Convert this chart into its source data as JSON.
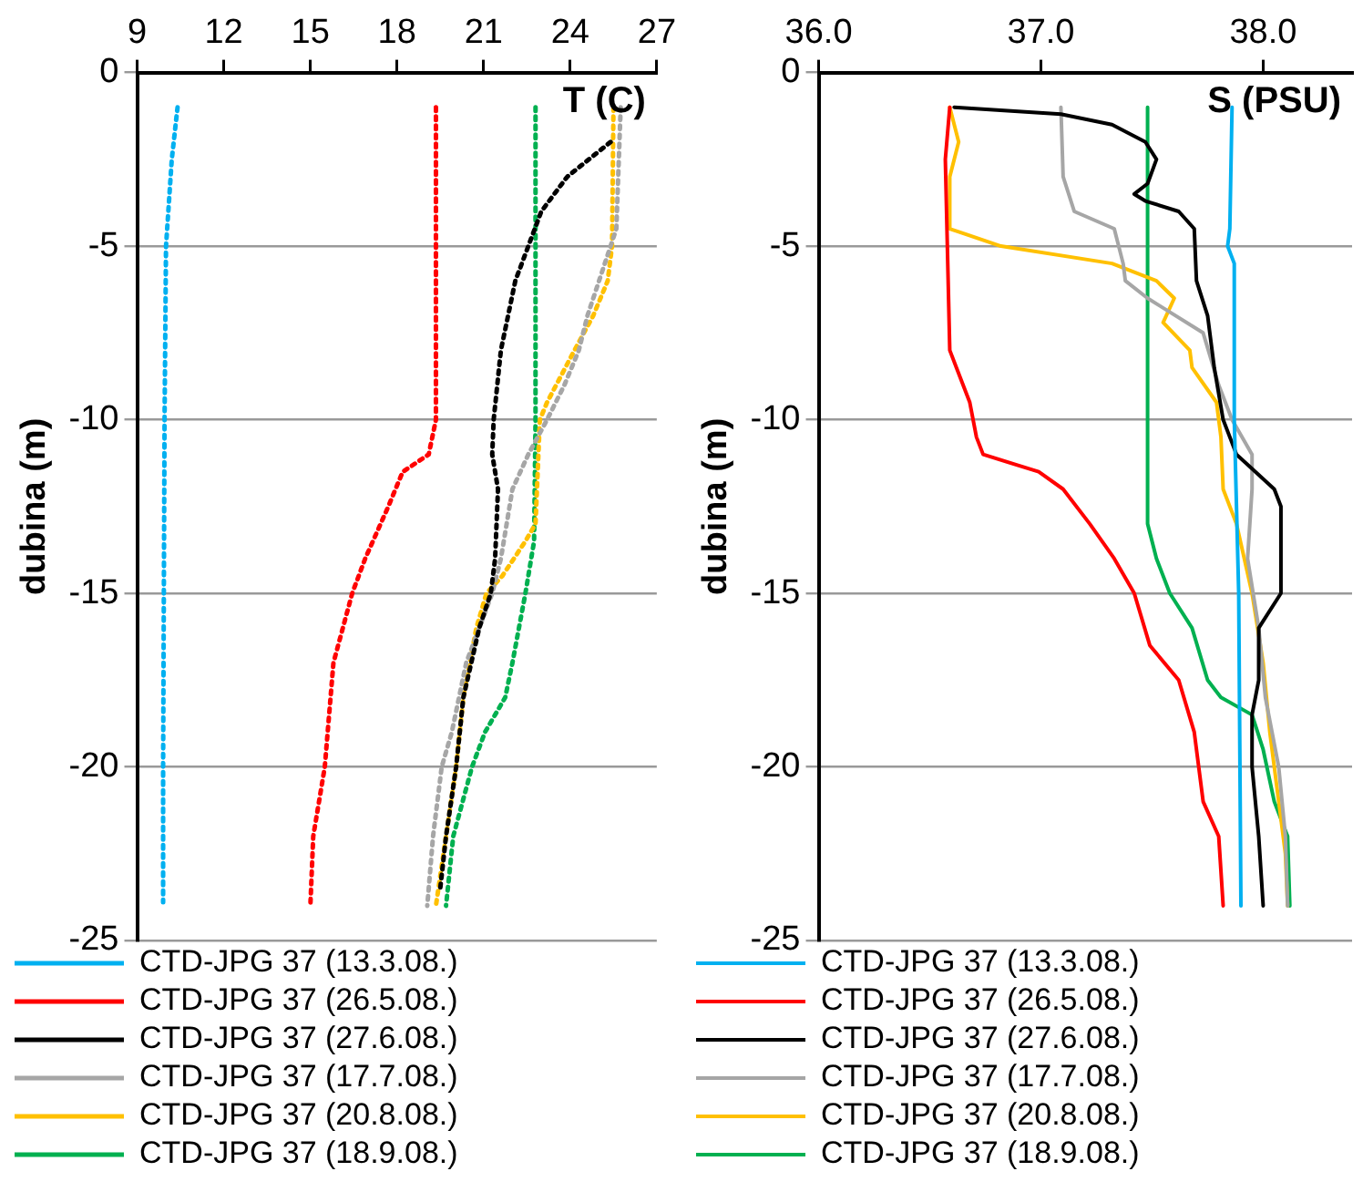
{
  "chart_data": [
    {
      "type": "line",
      "ylabel": "dubina (m)",
      "annotations": [
        "T (C)"
      ],
      "xlim": [
        9,
        27
      ],
      "xticks": [
        9,
        12,
        15,
        18,
        21,
        24,
        27
      ],
      "ylim": [
        -25,
        0
      ],
      "yticks": [
        -25,
        -20,
        -15,
        -10,
        -5,
        0
      ],
      "grid": "y",
      "legend": "bottom",
      "marker": "none",
      "line_style": "dotted",
      "series": [
        {
          "name": "CTD-JPG 37 (13.3.08.)",
          "color": "#00b0f0",
          "x": [
            10.4,
            10.2,
            10.0,
            9.95,
            9.9,
            9.9
          ],
          "values": [
            -1,
            -2.5,
            -5,
            -10,
            -20,
            -23.9
          ]
        },
        {
          "name": "CTD-JPG 37 (26.5.08.)",
          "color": "#ff0000",
          "x": [
            19.35,
            19.35,
            19.35,
            19.1,
            18.2,
            17.7,
            16.9,
            16.45,
            15.8,
            15.5,
            15.1,
            15.0
          ],
          "values": [
            -1,
            -5,
            -10,
            -11,
            -11.5,
            -12.5,
            -14,
            -15,
            -17,
            -20,
            -22,
            -24
          ]
        },
        {
          "name": "CTD-JPG 37 (27.6.08.)",
          "color": "#000000",
          "x": [
            25.4,
            23.9,
            23.0,
            22.55,
            22.1,
            21.6,
            21.35,
            21.3,
            21.5,
            21.4,
            21.25,
            20.85,
            20.3,
            20.05,
            19.7,
            19.5
          ],
          "values": [
            -2,
            -3,
            -4,
            -5,
            -6,
            -8,
            -10,
            -11,
            -12,
            -14,
            -15,
            -16,
            -18,
            -20,
            -22,
            -23.5
          ]
        },
        {
          "name": "CTD-JPG 37 (17.7.08.)",
          "color": "#a6a6a6",
          "x": [
            25.75,
            25.6,
            25.2,
            24.6,
            24.3,
            23.8,
            23.2,
            22.55,
            22.0,
            21.6,
            21.3,
            20.4,
            19.9,
            19.55,
            19.25,
            19.05
          ],
          "values": [
            -1,
            -4.5,
            -5.5,
            -7,
            -8,
            -9,
            -10,
            -11,
            -12,
            -14,
            -15,
            -17,
            -19,
            -20,
            -22,
            -24
          ]
        },
        {
          "name": "CTD-JPG 37 (20.8.08.)",
          "color": "#ffc000",
          "x": [
            25.5,
            25.45,
            25.3,
            24.8,
            24.15,
            23.2,
            22.95,
            22.9,
            22.8,
            22.45,
            21.65,
            21.1,
            20.75,
            20.3,
            20.05,
            19.7,
            19.35
          ],
          "values": [
            -1,
            -5,
            -6,
            -7,
            -8,
            -9.5,
            -10,
            -11,
            -13,
            -13.5,
            -14.5,
            -15,
            -16,
            -18,
            -20,
            -22,
            -24
          ]
        },
        {
          "name": "CTD-JPG 37 (18.9.08.)",
          "color": "#00b050",
          "x": [
            22.8,
            22.8,
            22.75,
            22.45,
            22.0,
            21.75,
            21.05,
            20.6,
            19.95,
            19.7
          ],
          "values": [
            -1,
            -10,
            -13.5,
            -15,
            -17,
            -18,
            -19,
            -20,
            -22,
            -24
          ]
        }
      ]
    },
    {
      "type": "line",
      "ylabel": "dubina (m)",
      "annotations": [
        "S (PSU)"
      ],
      "xlim": [
        36,
        38.4
      ],
      "xticks": [
        {
          "value": 36,
          "label": "36.0"
        },
        {
          "value": 37,
          "label": "37.0"
        },
        {
          "value": 38,
          "label": "38.0"
        }
      ],
      "ylim": [
        -25,
        0
      ],
      "yticks": [
        -25,
        -20,
        -15,
        -10,
        -5,
        0
      ],
      "grid": "y",
      "legend": "bottom",
      "marker": "none",
      "line_style": "solid",
      "series": [
        {
          "name": "CTD-JPG 37 (13.3.08.)",
          "color": "#00b0f0",
          "x": [
            37.86,
            37.85,
            37.84,
            37.87,
            37.87,
            37.89,
            37.9
          ],
          "values": [
            -1,
            -4.5,
            -5,
            -5.5,
            -10,
            -15,
            -24
          ]
        },
        {
          "name": "CTD-JPG 37 (26.5.08.)",
          "color": "#ff0000",
          "x": [
            36.59,
            36.57,
            36.59,
            36.62,
            36.68,
            36.71,
            36.74,
            36.99,
            37.1,
            37.22,
            37.33,
            37.42,
            37.49,
            37.62,
            37.69,
            37.73,
            37.8,
            37.82
          ],
          "values": [
            -1,
            -2.5,
            -8,
            -8.5,
            -9.5,
            -10.5,
            -11,
            -11.5,
            -12,
            -13,
            -14,
            -15,
            -16.5,
            -17.5,
            -19,
            -21,
            -22,
            -24
          ]
        },
        {
          "name": "CTD-JPG 37 (27.6.08.)",
          "color": "#000000",
          "x": [
            36.61,
            37.09,
            37.32,
            37.47,
            37.52,
            37.48,
            37.42,
            37.47,
            37.62,
            37.69,
            37.7,
            37.75,
            37.78,
            37.82,
            37.88,
            38.05,
            38.08,
            38.08,
            37.98,
            37.98,
            37.95,
            37.95,
            37.98,
            38.0
          ],
          "values": [
            -1,
            -1.2,
            -1.5,
            -2,
            -2.5,
            -3.2,
            -3.5,
            -3.7,
            -4,
            -4.5,
            -6,
            -7,
            -8.5,
            -10,
            -11,
            -12,
            -12.5,
            -15,
            -16,
            -17.5,
            -18.5,
            -20,
            -22,
            -24
          ]
        },
        {
          "name": "CTD-JPG 37 (17.7.08.)",
          "color": "#a6a6a6",
          "x": [
            37.09,
            37.1,
            37.15,
            37.33,
            37.37,
            37.38,
            37.48,
            37.73,
            37.8,
            37.86,
            37.95,
            37.95,
            37.93,
            37.98,
            38.01,
            38.07,
            38.1,
            38.11
          ],
          "values": [
            -1,
            -3,
            -4,
            -4.5,
            -5.5,
            -6,
            -6.5,
            -7.5,
            -9,
            -10,
            -11,
            -12,
            -14,
            -16,
            -18,
            -20,
            -22,
            -24
          ]
        },
        {
          "name": "CTD-JPG 37 (20.8.08.)",
          "color": "#ffc000",
          "x": [
            36.59,
            36.63,
            36.59,
            36.59,
            36.82,
            37.32,
            37.52,
            37.6,
            37.55,
            37.67,
            37.68,
            37.79,
            37.81,
            37.82,
            37.88,
            37.95,
            38.0,
            38.03,
            38.07,
            38.1,
            38.11
          ],
          "values": [
            -1,
            -2,
            -3,
            -4.5,
            -5,
            -5.5,
            -6,
            -6.5,
            -7.2,
            -8,
            -8.5,
            -9.5,
            -10.5,
            -12,
            -13,
            -15,
            -17,
            -19,
            -21,
            -22.5,
            -24
          ]
        },
        {
          "name": "CTD-JPG 37 (18.9.08.)",
          "color": "#00b050",
          "x": [
            37.48,
            37.48,
            37.52,
            37.58,
            37.68,
            37.75,
            37.81,
            37.95,
            38.0,
            38.05,
            38.11,
            38.12
          ],
          "values": [
            -1,
            -13,
            -14,
            -15,
            -16,
            -17.5,
            -18,
            -18.5,
            -19.5,
            -21,
            -22,
            -24
          ]
        }
      ]
    }
  ]
}
